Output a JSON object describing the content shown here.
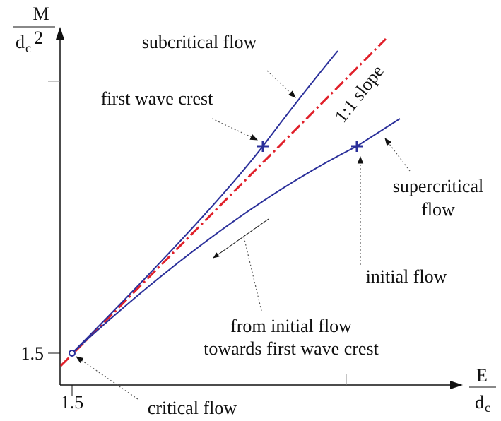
{
  "axes": {
    "y_label": {
      "numerator": "M",
      "denominator": "d",
      "subscript": "c",
      "superscript": "2"
    },
    "x_label": {
      "numerator": "E",
      "denominator": "d",
      "subscript": "c"
    },
    "y_tick": "1.5",
    "x_tick": "1.5"
  },
  "labels": {
    "subcritical": "subcritical flow",
    "first_wave_crest": "first wave crest",
    "slope": "1:1 slope",
    "supercritical": [
      "supercritical",
      "flow"
    ],
    "initial_flow": "initial flow",
    "towards": [
      "from initial flow",
      "towards first wave crest"
    ],
    "critical_flow": "critical flow"
  }
}
